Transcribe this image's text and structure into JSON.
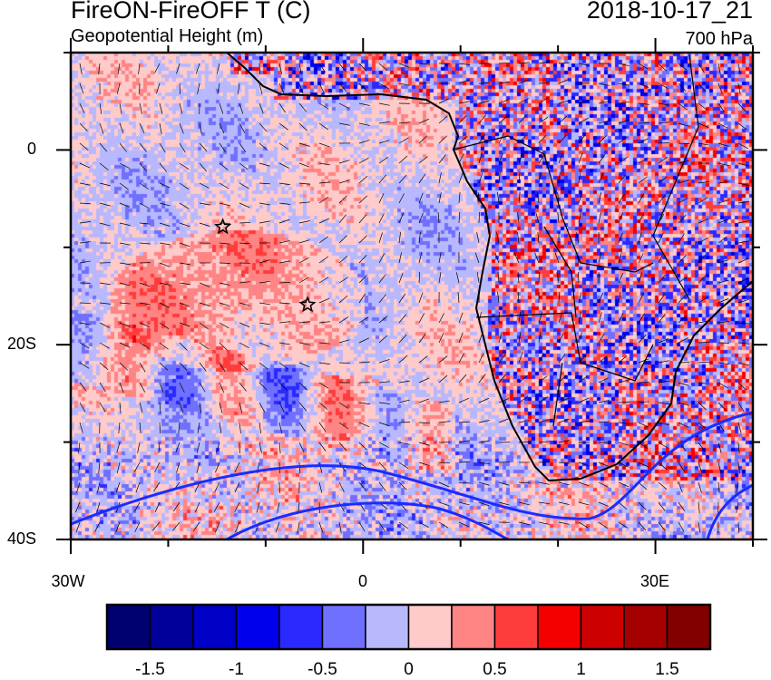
{
  "header": {
    "title": "FireON-FireOFF T (C)",
    "subtitle": "Geopotential Height (m)",
    "datetime": "2018-10-17_21",
    "level": "700 hPa"
  },
  "map": {
    "lon_range": [
      -30,
      40
    ],
    "lat_range": [
      -40,
      10
    ],
    "y_ticks": [
      {
        "lat": 0,
        "label": "0"
      },
      {
        "lat": -20,
        "label": "20S"
      },
      {
        "lat": -40,
        "label": "40S"
      }
    ],
    "x_ticks": [
      {
        "lon": -30,
        "label": "30W"
      },
      {
        "lon": 0,
        "label": "0"
      },
      {
        "lon": 30,
        "label": "30E"
      }
    ],
    "markers": [
      {
        "type": "star",
        "lon": -14.4,
        "lat": -7.9
      },
      {
        "type": "star",
        "lon": -5.7,
        "lat": -15.9
      }
    ],
    "contour_color": "#1a2cff",
    "coastline_color": "#000000"
  },
  "colorbar": {
    "colors": [
      "#000070",
      "#00009a",
      "#0000c6",
      "#0000ee",
      "#2a2aff",
      "#7070ff",
      "#b8b8ff",
      "#ffcaca",
      "#ff8484",
      "#ff3c3c",
      "#f50000",
      "#cd0000",
      "#a50000",
      "#820000"
    ],
    "levels": [
      -1.5,
      -1.25,
      -1,
      -0.75,
      -0.5,
      -0.25,
      0,
      0.25,
      0.5,
      0.75,
      1,
      1.25,
      1.5
    ],
    "labels": [
      "-1.5",
      "-1",
      "-0.5",
      "0",
      "0.5",
      "1",
      "1.5"
    ]
  }
}
